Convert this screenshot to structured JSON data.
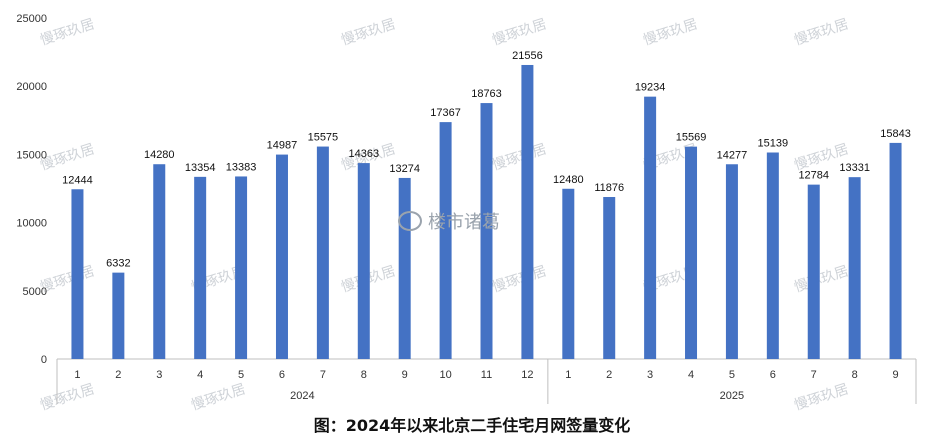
{
  "chart_data": {
    "type": "bar",
    "title": "图：2024年以来北京二手住宅月网签量变化",
    "xlabel": "",
    "ylabel": "",
    "ylim": [
      0,
      25000
    ],
    "yticks": [
      0,
      5000,
      10000,
      15000,
      20000,
      25000
    ],
    "grid": false,
    "legend": "none",
    "bar_color": "#4472C4",
    "groups": [
      {
        "label": "2024",
        "categories": [
          "1",
          "2",
          "3",
          "4",
          "5",
          "6",
          "7",
          "8",
          "9",
          "10",
          "11",
          "12"
        ],
        "values": [
          12444,
          6332,
          14280,
          13354,
          13383,
          14987,
          15575,
          14363,
          13274,
          17367,
          18763,
          21556
        ]
      },
      {
        "label": "2025",
        "categories": [
          "1",
          "2",
          "3",
          "4",
          "5",
          "6",
          "7",
          "8",
          "9"
        ],
        "values": [
          12480,
          11876,
          19234,
          15569,
          14277,
          15139,
          12784,
          13331,
          15843
        ]
      }
    ]
  },
  "watermark": {
    "text": "慢琢玖居",
    "center_text": "楼市诸葛"
  }
}
